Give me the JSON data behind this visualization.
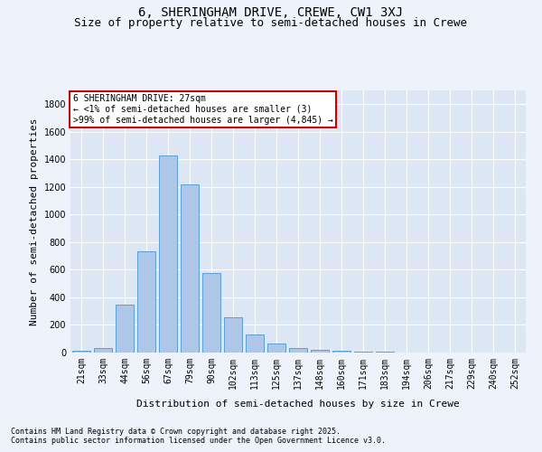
{
  "title": "6, SHERINGHAM DRIVE, CREWE, CW1 3XJ",
  "subtitle": "Size of property relative to semi-detached houses in Crewe",
  "xlabel": "Distribution of semi-detached houses by size in Crewe",
  "ylabel": "Number of semi-detached properties",
  "categories": [
    "21sqm",
    "33sqm",
    "44sqm",
    "56sqm",
    "67sqm",
    "79sqm",
    "90sqm",
    "102sqm",
    "113sqm",
    "125sqm",
    "137sqm",
    "148sqm",
    "160sqm",
    "171sqm",
    "183sqm",
    "194sqm",
    "206sqm",
    "217sqm",
    "229sqm",
    "240sqm",
    "252sqm"
  ],
  "values": [
    10,
    35,
    350,
    735,
    1430,
    1220,
    575,
    255,
    130,
    65,
    30,
    20,
    10,
    5,
    5,
    2,
    1,
    0,
    1,
    1,
    1
  ],
  "bar_color": "#aec6e8",
  "bar_edge_color": "#5a9fd4",
  "ylim": [
    0,
    1900
  ],
  "yticks": [
    0,
    200,
    400,
    600,
    800,
    1000,
    1200,
    1400,
    1600,
    1800
  ],
  "property_label": "6 SHERINGHAM DRIVE: 27sqm",
  "annotation_line1": "← <1% of semi-detached houses are smaller (3)",
  "annotation_line2": ">99% of semi-detached houses are larger (4,845) →",
  "annotation_box_color": "#ffffff",
  "annotation_box_edge": "#cc0000",
  "footnote1": "Contains HM Land Registry data © Crown copyright and database right 2025.",
  "footnote2": "Contains public sector information licensed under the Open Government Licence v3.0.",
  "bg_color": "#eef2fa",
  "plot_bg_color": "#dce6f5",
  "grid_color": "#ffffff",
  "title_fontsize": 10,
  "subtitle_fontsize": 9,
  "axis_label_fontsize": 8,
  "tick_fontsize": 7,
  "annotation_fontsize": 7,
  "footnote_fontsize": 6
}
